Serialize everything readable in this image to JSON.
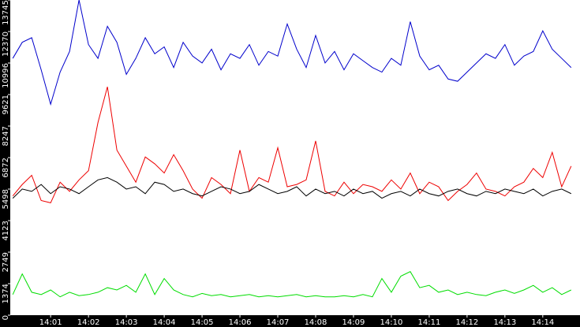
{
  "chart_data": {
    "type": "line",
    "x": [
      0,
      15,
      30,
      45,
      60,
      75,
      90,
      105,
      120,
      135,
      150,
      165,
      180,
      195,
      210,
      225,
      240,
      255,
      270,
      285,
      300,
      315,
      330,
      345,
      360,
      375,
      390,
      405,
      420,
      435,
      450,
      465,
      480,
      495,
      510,
      525,
      540,
      555,
      570,
      585,
      600,
      615,
      630,
      645,
      660,
      675,
      690,
      705,
      720,
      735,
      750,
      765,
      780,
      795,
      810,
      825,
      840,
      855,
      870,
      885
    ],
    "xlim": [
      -4,
      899
    ],
    "xticks": [
      {
        "value": 60,
        "label": "14:01"
      },
      {
        "value": 120,
        "label": "14:02"
      },
      {
        "value": 180,
        "label": "14:03"
      },
      {
        "value": 240,
        "label": "14:04"
      },
      {
        "value": 300,
        "label": "14:05"
      },
      {
        "value": 360,
        "label": "14:06"
      },
      {
        "value": 420,
        "label": "14:07"
      },
      {
        "value": 480,
        "label": "14:08"
      },
      {
        "value": 540,
        "label": "14:09"
      },
      {
        "value": 600,
        "label": "14:10"
      },
      {
        "value": 660,
        "label": "14:11"
      },
      {
        "value": 720,
        "label": "14:12"
      },
      {
        "value": 780,
        "label": "14:13"
      },
      {
        "value": 840,
        "label": "14:14"
      }
    ],
    "ylim": [
      0,
      13745
    ],
    "yticks": [
      0,
      1374,
      2749,
      4123,
      5498,
      6872,
      8247,
      9621,
      10996,
      12370,
      13745
    ],
    "series": [
      {
        "color": "#0000cc",
        "values": [
          11200,
          11900,
          12100,
          10700,
          9200,
          10600,
          11500,
          13745,
          11800,
          11200,
          12600,
          11900,
          10500,
          11200,
          12100,
          11400,
          11700,
          10800,
          11900,
          11300,
          11000,
          11600,
          10700,
          11400,
          11200,
          11800,
          10900,
          11500,
          11300,
          12700,
          11600,
          10800,
          12200,
          11000,
          11500,
          10700,
          11400,
          11100,
          10800,
          10600,
          11200,
          10900,
          12800,
          11300,
          10700,
          10900,
          10300,
          10200,
          10600,
          11000,
          11400,
          11200,
          11800,
          10900,
          11300,
          11500,
          12400,
          11600,
          11200,
          10800
        ]
      },
      {
        "color": "#ee0000",
        "values": [
          5200,
          5700,
          6100,
          5000,
          4900,
          5800,
          5400,
          5900,
          6300,
          8400,
          9960,
          7200,
          6500,
          5800,
          6900,
          6600,
          6200,
          7000,
          6300,
          5500,
          5100,
          6000,
          5700,
          5300,
          7200,
          5400,
          6000,
          5800,
          7300,
          5600,
          5700,
          5900,
          7600,
          5400,
          5200,
          5800,
          5300,
          5700,
          5600,
          5400,
          5900,
          5500,
          6200,
          5300,
          5800,
          5600,
          5000,
          5400,
          5700,
          6200,
          5500,
          5400,
          5200,
          5600,
          5800,
          6400,
          6000,
          7100,
          5600,
          6500
        ]
      },
      {
        "color": "#000000",
        "values": [
          5100,
          5500,
          5400,
          5700,
          5300,
          5600,
          5500,
          5300,
          5600,
          5900,
          6000,
          5800,
          5500,
          5600,
          5300,
          5800,
          5700,
          5400,
          5500,
          5300,
          5200,
          5400,
          5600,
          5500,
          5300,
          5400,
          5700,
          5500,
          5300,
          5400,
          5600,
          5200,
          5500,
          5300,
          5400,
          5200,
          5500,
          5300,
          5400,
          5100,
          5300,
          5400,
          5200,
          5500,
          5300,
          5200,
          5400,
          5500,
          5300,
          5200,
          5400,
          5300,
          5500,
          5400,
          5300,
          5500,
          5200,
          5400,
          5500,
          5300
        ]
      },
      {
        "color": "#00dd00",
        "values": [
          900,
          1800,
          1000,
          900,
          1100,
          800,
          1000,
          850,
          900,
          1000,
          1200,
          1100,
          1300,
          1000,
          1800,
          900,
          1600,
          1100,
          900,
          800,
          950,
          850,
          900,
          800,
          850,
          900,
          800,
          850,
          800,
          850,
          900,
          800,
          850,
          800,
          800,
          850,
          800,
          900,
          800,
          1600,
          1000,
          1700,
          1900,
          1200,
          1300,
          1000,
          1100,
          900,
          1000,
          900,
          850,
          1000,
          1100,
          950,
          1100,
          1300,
          1000,
          1200,
          900,
          1100
        ]
      }
    ]
  }
}
